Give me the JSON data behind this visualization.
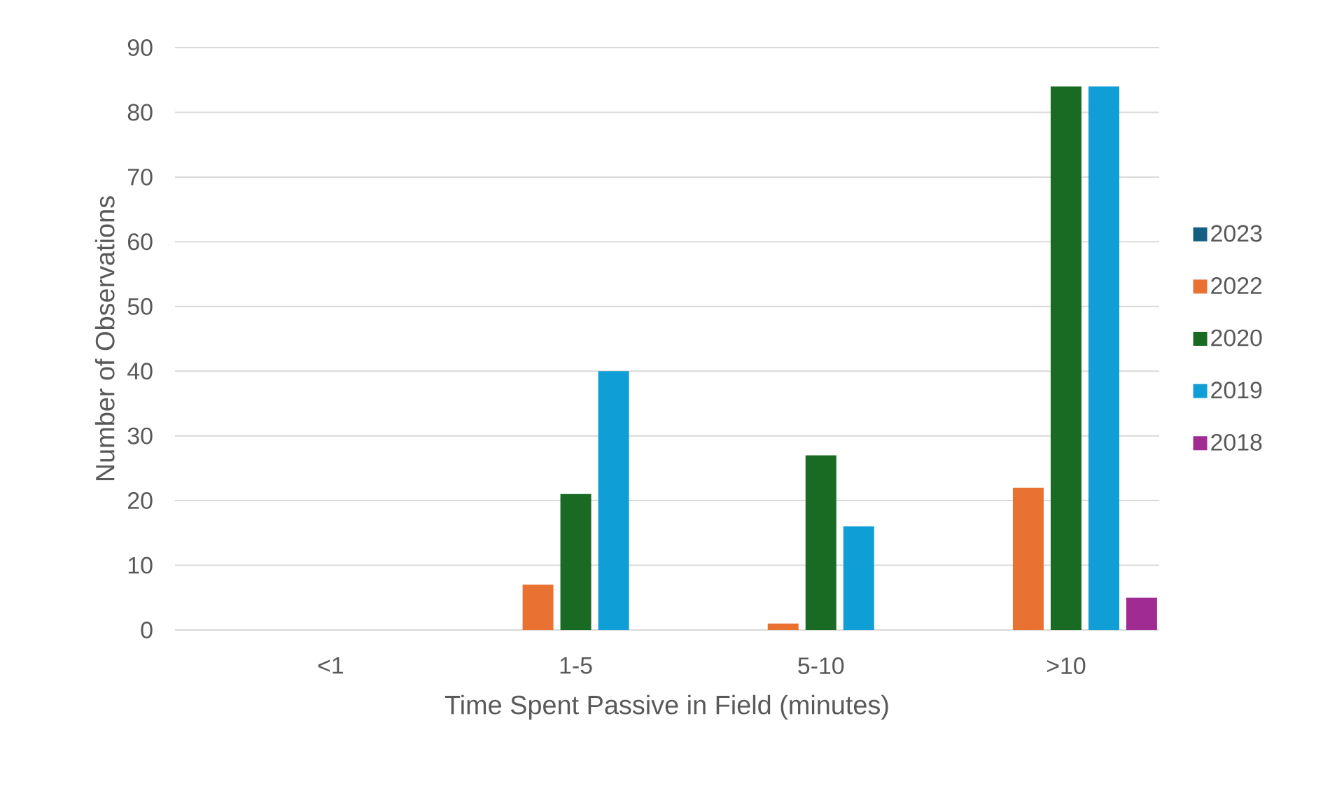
{
  "chart_data": {
    "type": "bar",
    "xlabel": "Time Spent Passive in Field (minutes)",
    "ylabel": "Number of Observations",
    "categories": [
      "<1",
      "1-5",
      "5-10",
      ">10"
    ],
    "series": [
      {
        "name": "2023",
        "color": "#156082",
        "values": [
          0,
          0,
          0,
          0
        ]
      },
      {
        "name": "2022",
        "color": "#e97132",
        "values": [
          0,
          7,
          1,
          22
        ]
      },
      {
        "name": "2020",
        "color": "#196b24",
        "values": [
          0,
          21,
          27,
          84
        ]
      },
      {
        "name": "2019",
        "color": "#0f9ed5",
        "values": [
          0,
          40,
          16,
          84
        ]
      },
      {
        "name": "2018",
        "color": "#a02b93",
        "values": [
          0,
          0,
          0,
          5
        ]
      }
    ],
    "ylim": [
      0,
      90
    ],
    "yticks": [
      0,
      10,
      20,
      30,
      40,
      50,
      60,
      70,
      80,
      90
    ],
    "grid": "y",
    "legend": "right"
  }
}
